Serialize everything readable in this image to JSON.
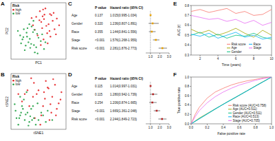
{
  "chart_data": [
    {
      "type": "scatter",
      "title": "A",
      "x_label": "PC1",
      "y_label": "PC2",
      "xlim": [
        -6,
        6
      ],
      "ylim": [
        -5,
        5
      ],
      "tick_labels": false,
      "legend": "top-left",
      "legend_title": "Risk",
      "marker": "circle",
      "series": [
        {
          "name": "high",
          "color": "#E41A1C",
          "x": [
            1.2,
            2.5,
            0.8,
            3.1,
            -0.5,
            1.9,
            4.0,
            2.2,
            0.3,
            -1.2,
            3.5,
            1.1,
            2.8,
            0.6,
            -0.2,
            1.5,
            4.5,
            2.0,
            3.3,
            0.9,
            -0.8,
            1.7,
            2.6,
            0.2,
            3.8,
            1.3,
            -1.5,
            2.4,
            0.5,
            1.0
          ],
          "values": [
            2.1,
            3.0,
            0.5,
            1.8,
            2.5,
            -0.4,
            2.2,
            1.2,
            3.5,
            1.0,
            0.3,
            -1.5,
            2.8,
            1.6,
            -0.8,
            4.0,
            1.0,
            -2.2,
            3.2,
            2.6,
            0.2,
            0.9,
            -1.0,
            1.9,
            -0.6,
            2.9,
            2.3,
            0.0,
            -2.5,
            3.8
          ]
        },
        {
          "name": "low",
          "color": "#1B9E3E",
          "x": [
            -2.5,
            -1.0,
            -3.2,
            0.5,
            -1.8,
            -4.0,
            -0.3,
            -2.2,
            1.2,
            -3.5,
            -1.5,
            -0.8,
            -2.8,
            0.0,
            -4.5,
            -1.2,
            -2.0,
            -3.0,
            0.8,
            -0.5,
            -2.6,
            -1.9,
            -3.8,
            -1.1,
            1.5,
            -0.2,
            -2.4,
            -3.3,
            -0.9,
            -1.6
          ],
          "values": [
            -1.0,
            -2.5,
            0.3,
            -1.8,
            -3.0,
            -0.8,
            -0.5,
            -2.0,
            -3.2,
            -1.5,
            0.8,
            -3.8,
            -2.6,
            -1.2,
            0.0,
            -0.2,
            1.2,
            -3.4,
            -0.6,
            -2.9,
            -0.3,
            -1.4,
            -2.2,
            1.8,
            -2.0,
            -4.0,
            0.5,
            -1.1,
            0.2,
            -2.3
          ]
        }
      ]
    },
    {
      "type": "scatter",
      "title": "B",
      "x_label": "tSNE1",
      "y_label": "tSNE2",
      "xlim": [
        -30,
        30
      ],
      "ylim": [
        -30,
        30
      ],
      "tick_labels": false,
      "legend": "top-left",
      "legend_title": "Risk",
      "marker": "circle",
      "series": [
        {
          "name": "high",
          "color": "#E41A1C",
          "x": [
            10,
            -5,
            15,
            20,
            -12,
            3,
            25,
            8,
            -18,
            12,
            -2,
            18,
            5,
            -8,
            22,
            0,
            14,
            -15,
            7,
            -22,
            16,
            -4,
            11,
            24,
            2,
            -10,
            19,
            6,
            -6,
            13
          ],
          "values": [
            15,
            20,
            5,
            -8,
            12,
            -15,
            10,
            22,
            0,
            -20,
            8,
            18,
            -5,
            25,
            -2,
            12,
            -12,
            8,
            3,
            8,
            24,
            -18,
            14,
            2,
            -25,
            -5,
            -15,
            10,
            5,
            -3
          ]
        },
        {
          "name": "low",
          "color": "#1B9E3E",
          "x": [
            -20,
            -15,
            -25,
            -10,
            -18,
            -5,
            -22,
            -12,
            0,
            -8,
            5,
            -16,
            -24,
            -3,
            10,
            -14,
            -20,
            -6,
            -11,
            8,
            -19,
            -1,
            -26,
            -9,
            15,
            -13,
            -17,
            3,
            -7,
            -21
          ],
          "values": [
            -15,
            -20,
            -10,
            -22,
            -5,
            -18,
            -25,
            -12,
            -20,
            -8,
            -15,
            2,
            -18,
            -25,
            -10,
            -14,
            5,
            -5,
            -26,
            -22,
            -12,
            -2,
            -3,
            -16,
            -20,
            10,
            -8,
            -12,
            -20,
            -18
          ]
        }
      ]
    },
    {
      "type": "forest",
      "title": "C",
      "columns": [
        "P value",
        "Hazard ratio (95% CI)"
      ],
      "categories": [
        "Age",
        "Gender",
        "Race",
        "Stage",
        "Risk score"
      ],
      "p_values": [
        "0.137",
        "0.320",
        "0.355",
        "<0.001",
        "<0.001"
      ],
      "values": [
        1.015,
        1.236,
        1.144,
        1.576,
        2.281
      ],
      "ci_low": [
        0.995,
        0.807,
        0.841,
        1.268,
        1.876
      ],
      "ci_high": [
        1.034,
        1.891,
        1.556,
        1.959,
        2.773
      ],
      "value_labels": [
        "1.015(0.995-1.034)",
        "1.236(0.807-1.891)",
        "1.144(0.841-1.556)",
        "1.576(1.268-1.959)",
        "2.281(1.876-2.773)"
      ],
      "reference_line": 1,
      "xlim": [
        0.5,
        3
      ],
      "xticks": [
        {
          "value": 1,
          "label": "1.0"
        },
        {
          "value": 2,
          "label": "2.0"
        },
        {
          "value": 3,
          "label": "3.0"
        }
      ],
      "color": "#E69F00",
      "marker": "square"
    },
    {
      "type": "forest",
      "title": "D",
      "columns": [
        "P value",
        "Hazard ratio (95% CI)"
      ],
      "categories": [
        "Age",
        "Gender",
        "Race",
        "Stage",
        "Risk score"
      ],
      "p_values": [
        "0.115",
        "0.115",
        "0.254",
        "<0.001",
        "<0.001"
      ],
      "values": [
        1.014,
        1.28,
        1.206,
        1.669,
        2.244
      ],
      "ci_low": [
        0.997,
        0.942,
        0.874,
        1.361,
        1.849
      ],
      "ci_high": [
        1.031,
        1.739,
        1.665,
        2.048,
        2.723
      ],
      "value_labels": [
        "1.014(0.997-1.031)",
        "1.280(0.942-1.739)",
        "1.206(0.874-1.665)",
        "1.669(1.361-2.048)",
        "2.244(1.849-2.723)"
      ],
      "reference_line": 1,
      "xlim": [
        0.5,
        3
      ],
      "xticks": [
        {
          "value": 1,
          "label": "1.0"
        },
        {
          "value": 2,
          "label": "2.0"
        },
        {
          "value": 3,
          "label": "3.0"
        }
      ],
      "color": "#B22222",
      "marker": "square"
    },
    {
      "type": "line",
      "title": "E",
      "x_label": "Time (years)",
      "y_label": "AUC (t)",
      "x": [
        1,
        2,
        3,
        4,
        5,
        6,
        7,
        8,
        9,
        10
      ],
      "xlim": [
        1,
        10
      ],
      "xticks": [
        2,
        4,
        6,
        8,
        10
      ],
      "ylim": [
        0.3,
        0.8
      ],
      "yticks": [
        0.3,
        0.4,
        0.5,
        0.6,
        0.7,
        0.8
      ],
      "grid": false,
      "legend": "bottom-right",
      "series": [
        {
          "name": "Risk score",
          "color": "#F8766D",
          "values": [
            0.74,
            0.76,
            0.73,
            0.75,
            0.77,
            0.72,
            0.74,
            0.7,
            0.71,
            0.76
          ]
        },
        {
          "name": "Age",
          "color": "#A3A500",
          "values": [
            0.56,
            0.52,
            0.55,
            0.5,
            0.53,
            0.57,
            0.52,
            0.48,
            0.55,
            0.5
          ]
        },
        {
          "name": "Gender",
          "color": "#00BF7D",
          "values": [
            0.5,
            0.53,
            0.48,
            0.51,
            0.47,
            0.5,
            0.49,
            0.52,
            0.48,
            0.46
          ]
        },
        {
          "name": "Race",
          "color": "#00B0F6",
          "values": [
            0.51,
            0.49,
            0.52,
            0.47,
            0.5,
            0.53,
            0.48,
            0.5,
            0.46,
            0.48
          ]
        },
        {
          "name": "Stage",
          "color": "#E76BF3",
          "values": [
            0.7,
            0.68,
            0.66,
            0.67,
            0.64,
            0.66,
            0.62,
            0.65,
            0.6,
            0.63
          ]
        }
      ]
    },
    {
      "type": "line",
      "title": "F",
      "x_label": "False positive rate",
      "y_label": "True positive rate",
      "xlim": [
        0,
        1
      ],
      "ylim": [
        0,
        1
      ],
      "xticks": [
        {
          "value": 0,
          "label": "0.0"
        },
        0.2,
        0.4,
        0.6,
        0.8,
        {
          "value": 1,
          "label": "1.0"
        }
      ],
      "yticks": [
        {
          "value": 0,
          "label": "0.0"
        },
        0.2,
        0.4,
        0.6,
        0.8,
        {
          "value": 1,
          "label": "1.0"
        }
      ],
      "grid": false,
      "legend": "bottom-right",
      "series": [
        {
          "name": "Risk score (AUC=0.758)",
          "color": "#F8766D",
          "x": [
            0,
            0.05,
            0.1,
            0.2,
            0.3,
            0.4,
            0.5,
            0.6,
            0.7,
            0.8,
            0.9,
            1
          ],
          "values": [
            0,
            0.2,
            0.35,
            0.55,
            0.68,
            0.76,
            0.83,
            0.88,
            0.92,
            0.95,
            0.98,
            1
          ]
        },
        {
          "name": "Age (AUC=0.511)",
          "color": "#A3A500",
          "x": [
            0,
            0.1,
            0.25,
            0.4,
            0.55,
            0.7,
            0.85,
            1
          ],
          "values": [
            0,
            0.12,
            0.27,
            0.42,
            0.56,
            0.71,
            0.86,
            1
          ]
        },
        {
          "name": "Gender (AUC=0.511)",
          "color": "#00BF7D",
          "x": [
            0,
            0.45,
            1
          ],
          "values": [
            0,
            0.47,
            1
          ]
        },
        {
          "name": "Race (AUC=0.513)",
          "color": "#00B0F6",
          "x": [
            0,
            0.3,
            0.6,
            1
          ],
          "values": [
            0,
            0.32,
            0.61,
            1
          ]
        },
        {
          "name": "Stage (AUC=0.705)",
          "color": "#E76BF3",
          "x": [
            0,
            0.05,
            0.1,
            0.2,
            0.3,
            0.4,
            0.5,
            0.6,
            0.7,
            0.8,
            0.9,
            1
          ],
          "values": [
            0,
            0.15,
            0.28,
            0.45,
            0.58,
            0.68,
            0.76,
            0.83,
            0.88,
            0.93,
            0.97,
            1
          ]
        }
      ]
    }
  ]
}
